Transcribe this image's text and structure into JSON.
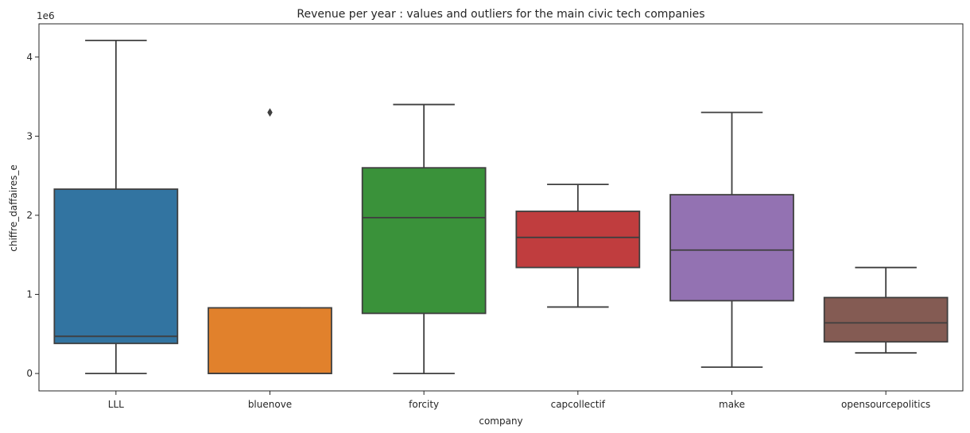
{
  "chart_data": {
    "type": "box",
    "title": "Revenue per year : values and outliers for the main civic tech companies",
    "xlabel": "company",
    "ylabel": "chiffre_daffaires_e",
    "y_offset_label": "1e6",
    "y_scale": 1000000,
    "ylim": [
      -220000,
      4420000
    ],
    "yticks": [
      0,
      1000000,
      2000000,
      3000000,
      4000000
    ],
    "ytick_labels": [
      "0",
      "1",
      "2",
      "3",
      "4"
    ],
    "grid": false,
    "boxes": [
      {
        "category": "LLL",
        "color": "#3274a1",
        "whisker_low": 0,
        "q1": 380000,
        "median": 470000,
        "q3": 2330000,
        "whisker_high": 4210000,
        "outliers": []
      },
      {
        "category": "bluenove",
        "color": "#e1812c",
        "whisker_low": 0,
        "q1": 0,
        "median": 0,
        "q3": 830000,
        "whisker_high": 830000,
        "outliers": [
          3300000
        ]
      },
      {
        "category": "forcity",
        "color": "#3a923a",
        "whisker_low": 0,
        "q1": 760000,
        "median": 1970000,
        "q3": 2600000,
        "whisker_high": 3400000,
        "outliers": []
      },
      {
        "category": "capcollectif",
        "color": "#c03d3e",
        "whisker_low": 840000,
        "q1": 1340000,
        "median": 1720000,
        "q3": 2050000,
        "whisker_high": 2390000,
        "outliers": []
      },
      {
        "category": "make",
        "color": "#9372b2",
        "whisker_low": 80000,
        "q1": 920000,
        "median": 1560000,
        "q3": 2260000,
        "whisker_high": 3300000,
        "outliers": []
      },
      {
        "category": "opensourcepolitics",
        "color": "#845b53",
        "whisker_low": 260000,
        "q1": 400000,
        "median": 640000,
        "q3": 960000,
        "whisker_high": 1340000,
        "outliers": []
      }
    ]
  }
}
